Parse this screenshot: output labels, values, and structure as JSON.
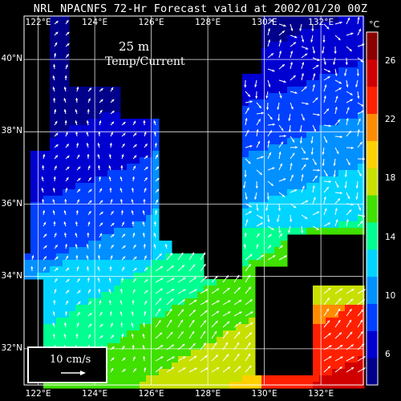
{
  "title": "NRL NPACNFS 72-Hr Forecast valid at 2002/01/20 00Z",
  "depth_label": "25 m",
  "field_label": "Temp/Current",
  "units": "°C",
  "legend": {
    "scale_label": "10 cm/s"
  },
  "map": {
    "lon_min": 121.5,
    "lon_max": 133.5,
    "lat_min": 31.0,
    "lat_max": 41.2,
    "lon_ticks": [
      "122°E",
      "124°E",
      "126°E",
      "128°E",
      "130°E",
      "132°E"
    ],
    "lat_ticks": [
      "32°N",
      "34°N",
      "36°N",
      "38°N",
      "40°N"
    ],
    "land_color": "#000000",
    "grid_color": "#ffffff",
    "vector_color": "#ffffff"
  },
  "colorbar": {
    "range_c": [
      4,
      28
    ],
    "ticks": [
      "6",
      "10",
      "14",
      "18",
      "22",
      "26"
    ],
    "colors": [
      "#00008a",
      "#0000d0",
      "#0040ff",
      "#0090ff",
      "#00d4ff",
      "#00ff90",
      "#40e000",
      "#c8e000",
      "#ffd000",
      "#ff8c00",
      "#ff2000",
      "#d00000",
      "#8a0000"
    ]
  }
}
